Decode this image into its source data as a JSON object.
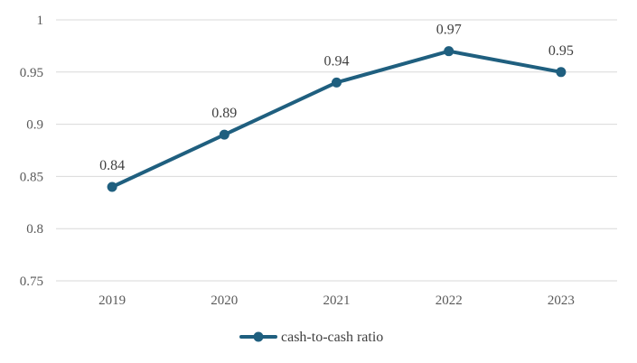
{
  "colors": {
    "series": "#1f5f7f",
    "grid": "#d9d9d9",
    "axis_text": "#595959",
    "label_text": "#404040"
  },
  "chart_data": {
    "type": "line",
    "title": "",
    "xlabel": "",
    "ylabel": "",
    "categories": [
      "2019",
      "2020",
      "2021",
      "2022",
      "2023"
    ],
    "series": [
      {
        "name": "cash-to-cash ratio",
        "values": [
          0.84,
          0.89,
          0.94,
          0.97,
          0.95
        ],
        "data_labels": [
          "0.84",
          "0.89",
          "0.94",
          "0.97",
          "0.95"
        ]
      }
    ],
    "ylim": [
      0.75,
      1
    ],
    "yticks": [
      0.75,
      0.8,
      0.85,
      0.9,
      0.95,
      1
    ],
    "ytick_labels": [
      "0.75",
      "0.8",
      "0.85",
      "0.9",
      "0.95",
      "1"
    ],
    "grid": true,
    "legend": "bottom-center"
  }
}
